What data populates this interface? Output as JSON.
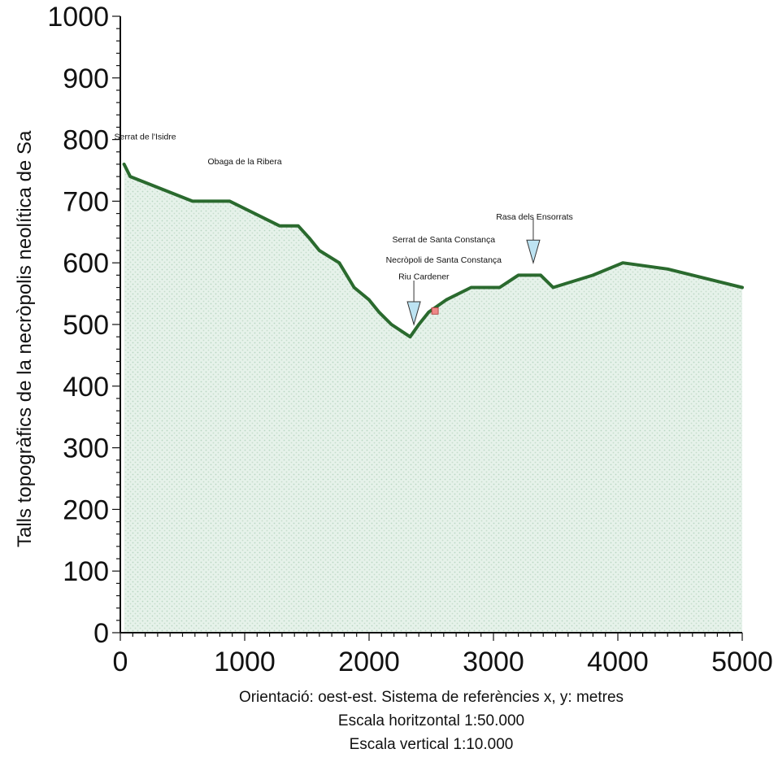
{
  "chart_data": {
    "type": "area",
    "title": "",
    "xlabel": "",
    "ylabel": "Talls topogràfics de la necròpolis neolítica de Sa",
    "xlim": [
      0,
      5000
    ],
    "ylim": [
      0,
      1000
    ],
    "x_ticks": [
      "0",
      "1000",
      "2000",
      "3000",
      "4000",
      "5000"
    ],
    "y_ticks": [
      "0",
      "100",
      "200",
      "300",
      "400",
      "500",
      "600",
      "700",
      "800",
      "900",
      "1000"
    ],
    "series": [
      {
        "line_color": "#2a6a2e",
        "fill_color": "#d6ecd9",
        "x": [
          30,
          80,
          580,
          880,
          1280,
          1430,
          1520,
          1600,
          1760,
          1880,
          2000,
          2080,
          2180,
          2330,
          2400,
          2480,
          2620,
          2820,
          3050,
          3200,
          3380,
          3480,
          3800,
          4040,
          4400,
          5000
        ],
        "y": [
          760,
          740,
          700,
          700,
          660,
          660,
          640,
          620,
          600,
          560,
          540,
          520,
          500,
          480,
          500,
          520,
          540,
          560,
          560,
          580,
          580,
          560,
          580,
          600,
          590,
          560
        ]
      }
    ],
    "annotations": [
      {
        "text": "Serrat de l'Isidre",
        "x": 200,
        "y": 800
      },
      {
        "text": "Obaga de la Ribera",
        "x": 1000,
        "y": 760
      },
      {
        "text": "Rasa dels Ensorrats",
        "x": 3330,
        "y": 670
      },
      {
        "text": "Serrat de Santa Constança",
        "x": 2600,
        "y": 633
      },
      {
        "text": "Necròpoli de Santa Constança",
        "x": 2600,
        "y": 600
      },
      {
        "text": "Riu Cardener",
        "x": 2440,
        "y": 573
      }
    ],
    "markers": [
      {
        "type": "triangle-down",
        "x": 2360,
        "y": 500,
        "color": "#bde3f2"
      },
      {
        "type": "triangle-down",
        "x": 3320,
        "y": 600,
        "color": "#bde3f2"
      },
      {
        "type": "square",
        "x": 2530,
        "y": 522,
        "color": "#e88"
      }
    ],
    "grid": false,
    "legend": "none"
  },
  "caption": {
    "line1": "Orientació: oest-est. Sistema de referències x, y: metres",
    "line2": "Escala horitzontal 1:50.000",
    "line3": "Escala vertical 1:10.000"
  }
}
